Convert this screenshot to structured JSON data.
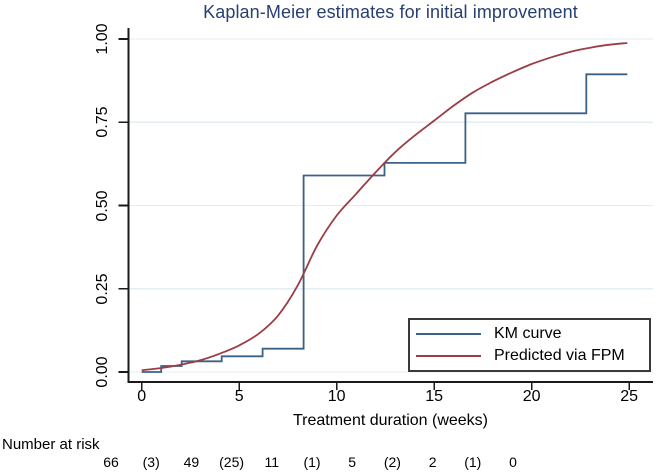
{
  "figure": {
    "title": "Kaplan-Meier estimates for initial improvement",
    "risk_table": {
      "label": "Number at risk",
      "values": [
        "66",
        "(3)",
        "49",
        "(25)",
        "11",
        "(1)",
        "5",
        "(2)",
        "2",
        "(1)",
        "0"
      ]
    }
  },
  "colors": {
    "title": "#283f72",
    "km_curve": "#3a6186",
    "fpm_curve": "#9a3d46",
    "gridline": "#e3edf2",
    "axis": "#1a1a1a",
    "legend_border": "#3a3a3a"
  },
  "legend": {
    "items": [
      {
        "label": "KM curve",
        "color": "#3a6186"
      },
      {
        "label": "Predicted via FPM",
        "color": "#9a3d46"
      }
    ]
  },
  "chart_data": {
    "type": "line",
    "title": "Kaplan-Meier estimates for initial improvement",
    "xlabel": "Treatment duration (weeks)",
    "ylabel": "",
    "xlim": [
      0,
      25
    ],
    "ylim": [
      0,
      1
    ],
    "grid": "horizontal",
    "legend_position": "inside-bottom-right",
    "x_ticks": [
      0,
      5,
      10,
      15,
      20,
      25
    ],
    "y_ticks": [
      {
        "value": 0.0,
        "label": "0.00"
      },
      {
        "value": 0.25,
        "label": "0.25"
      },
      {
        "value": 0.5,
        "label": "0.50"
      },
      {
        "value": 0.75,
        "label": "0.75"
      },
      {
        "value": 1.0,
        "label": "1.00"
      }
    ],
    "series": [
      {
        "name": "KM curve",
        "style": "step",
        "color": "#3a6186",
        "x": [
          0,
          1,
          2.05,
          4.1,
          6.2,
          8.3,
          12.45,
          16.6,
          22.8,
          24.9
        ],
        "y": [
          0,
          0.018,
          0.032,
          0.047,
          0.07,
          0.59,
          0.628,
          0.777,
          0.894,
          0.894
        ]
      },
      {
        "name": "Predicted via FPM",
        "style": "smooth",
        "color": "#9a3d46",
        "x": [
          0,
          1,
          2,
          3,
          4,
          5,
          6,
          7,
          8,
          9,
          10,
          11,
          12,
          13,
          14,
          15,
          16,
          17,
          18,
          19,
          20,
          21,
          22,
          23,
          24,
          24.9
        ],
        "y": [
          0.005,
          0.012,
          0.022,
          0.035,
          0.055,
          0.08,
          0.115,
          0.17,
          0.26,
          0.38,
          0.47,
          0.535,
          0.6,
          0.66,
          0.71,
          0.755,
          0.8,
          0.84,
          0.872,
          0.9,
          0.925,
          0.945,
          0.962,
          0.974,
          0.983,
          0.988
        ]
      }
    ]
  }
}
